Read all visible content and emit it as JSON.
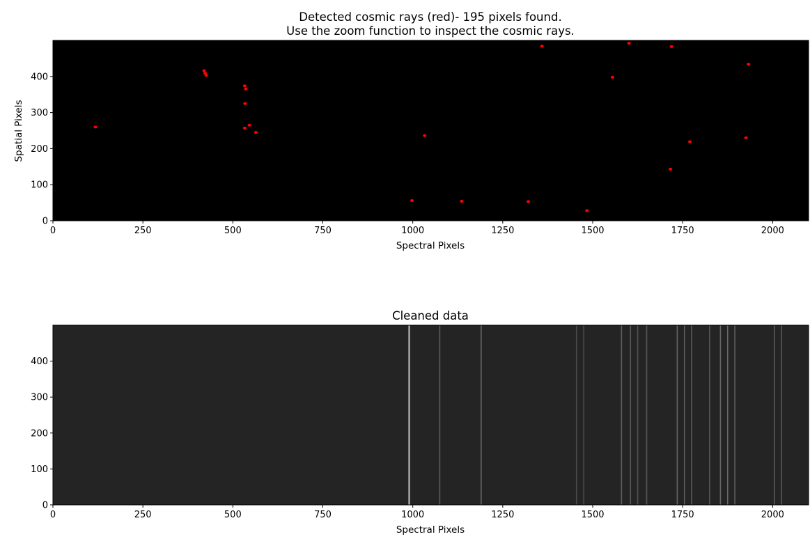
{
  "colors": {
    "background": "#ffffff",
    "image_bg": "#000000",
    "cosmic_ray": "#ff0000",
    "spectrum": "#cfcfcf"
  },
  "chart_data": [
    {
      "type": "scatter",
      "title_line1": "Detected cosmic rays (red)- 195 pixels found.",
      "title_line2": "Use the zoom function to inspect the cosmic rays.",
      "xlabel": "Spectral Pixels",
      "ylabel": "Spatial Pixels",
      "xlim": [
        0,
        2100
      ],
      "ylim": [
        0,
        500
      ],
      "xticks": [
        0,
        250,
        500,
        750,
        1000,
        1250,
        1500,
        1750,
        2000
      ],
      "yticks": [
        0,
        100,
        200,
        300,
        400
      ],
      "background": "black image",
      "points": [
        {
          "x": 118,
          "y": 260
        },
        {
          "x": 420,
          "y": 416
        },
        {
          "x": 423,
          "y": 409
        },
        {
          "x": 426,
          "y": 403
        },
        {
          "x": 533,
          "y": 374
        },
        {
          "x": 536,
          "y": 365
        },
        {
          "x": 534,
          "y": 325
        },
        {
          "x": 533,
          "y": 257
        },
        {
          "x": 546,
          "y": 265
        },
        {
          "x": 564,
          "y": 245
        },
        {
          "x": 998,
          "y": 56
        },
        {
          "x": 1033,
          "y": 236
        },
        {
          "x": 1136,
          "y": 54
        },
        {
          "x": 1321,
          "y": 53
        },
        {
          "x": 1359,
          "y": 484
        },
        {
          "x": 1484,
          "y": 28
        },
        {
          "x": 1555,
          "y": 398
        },
        {
          "x": 1601,
          "y": 492
        },
        {
          "x": 1716,
          "y": 143
        },
        {
          "x": 1719,
          "y": 483
        },
        {
          "x": 1770,
          "y": 219
        },
        {
          "x": 1926,
          "y": 230
        },
        {
          "x": 1933,
          "y": 434
        }
      ]
    },
    {
      "type": "heatmap",
      "title": "Cleaned data",
      "xlabel": "Spectral Pixels",
      "xlim": [
        0,
        2100
      ],
      "ylim": [
        0,
        500
      ],
      "xticks": [
        0,
        250,
        500,
        750,
        1000,
        1250,
        1500,
        1750,
        2000
      ],
      "yticks": [
        0,
        100,
        200,
        300,
        400
      ],
      "colormap": "gray",
      "spectrum_trace_y": 253,
      "spectrum_trace_x_start": 430,
      "emission_lines": [
        {
          "x": 990,
          "intensity": 1.0
        },
        {
          "x": 1075,
          "intensity": 0.3
        },
        {
          "x": 1190,
          "intensity": 0.35
        },
        {
          "x": 1455,
          "intensity": 0.15
        },
        {
          "x": 1475,
          "intensity": 0.15
        },
        {
          "x": 1580,
          "intensity": 0.3
        },
        {
          "x": 1605,
          "intensity": 0.25
        },
        {
          "x": 1625,
          "intensity": 0.2
        },
        {
          "x": 1650,
          "intensity": 0.25
        },
        {
          "x": 1735,
          "intensity": 0.35
        },
        {
          "x": 1755,
          "intensity": 0.3
        },
        {
          "x": 1775,
          "intensity": 0.25
        },
        {
          "x": 1825,
          "intensity": 0.25
        },
        {
          "x": 1855,
          "intensity": 0.35
        },
        {
          "x": 1875,
          "intensity": 0.4
        },
        {
          "x": 1895,
          "intensity": 0.3
        },
        {
          "x": 2005,
          "intensity": 0.25
        },
        {
          "x": 2025,
          "intensity": 0.25
        }
      ]
    }
  ]
}
